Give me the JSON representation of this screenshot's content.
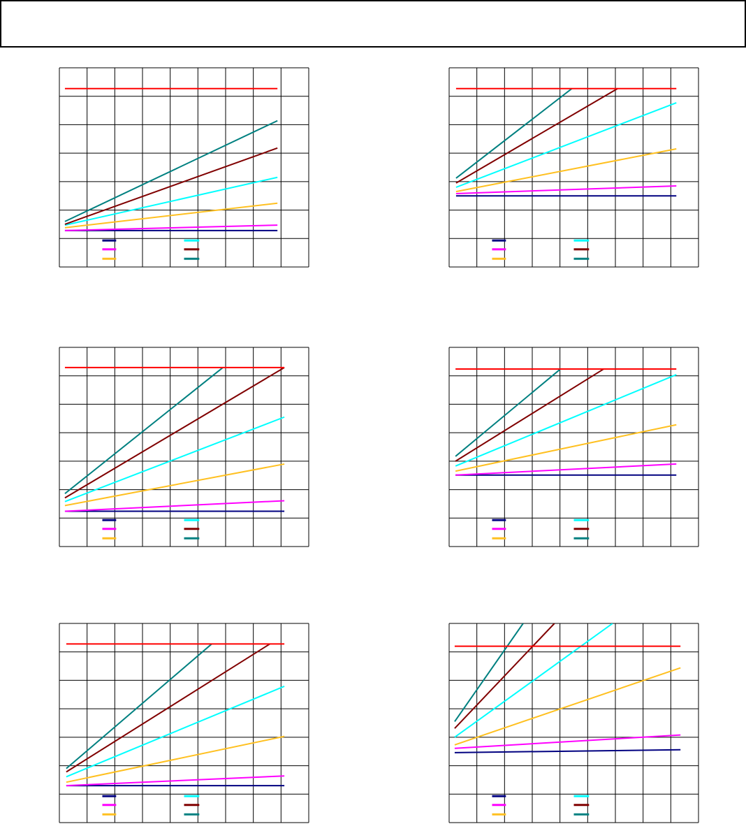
{
  "chart_data": [
    {
      "type": "line",
      "xlim": [
        0,
        9
      ],
      "ylim": [
        0,
        7
      ],
      "xticks": [
        0,
        1,
        2,
        3,
        4,
        5,
        6,
        7,
        8,
        9
      ],
      "yticks": [
        0,
        1,
        2,
        3,
        4,
        5,
        6,
        7
      ],
      "grid": true,
      "series": [
        {
          "color": "#000080",
          "x": [
            0.2,
            7.87
          ],
          "values": [
            1.28,
            1.28
          ]
        },
        {
          "color": "#ff00ff",
          "x": [
            0.2,
            7.87
          ],
          "values": [
            1.28,
            1.47
          ]
        },
        {
          "color": "#ffc020",
          "x": [
            0.2,
            7.87
          ],
          "values": [
            1.38,
            2.24
          ]
        },
        {
          "color": "#00ffff",
          "x": [
            0.2,
            7.87
          ],
          "values": [
            1.47,
            3.15
          ]
        },
        {
          "color": "#800000",
          "x": [
            0.2,
            7.87
          ],
          "values": [
            1.5,
            4.18
          ]
        },
        {
          "color": "#008080",
          "x": [
            0.2,
            7.87
          ],
          "values": [
            1.6,
            5.14
          ]
        },
        {
          "color": "#ff0000",
          "x": [
            0.2,
            7.87
          ],
          "values": [
            6.27,
            6.27
          ],
          "in_legend": false
        }
      ]
    },
    {
      "type": "line",
      "xlim": [
        0,
        9
      ],
      "ylim": [
        0,
        7
      ],
      "xticks": [
        0,
        1,
        2,
        3,
        4,
        5,
        6,
        7,
        8,
        9
      ],
      "yticks": [
        0,
        1,
        2,
        3,
        4,
        5,
        6,
        7
      ],
      "grid": true,
      "series": [
        {
          "color": "#000080",
          "x": [
            0.25,
            8.2
          ],
          "values": [
            2.5,
            2.5
          ]
        },
        {
          "color": "#ff00ff",
          "x": [
            0.25,
            8.2
          ],
          "values": [
            2.58,
            2.85
          ]
        },
        {
          "color": "#ffc020",
          "x": [
            0.25,
            8.2
          ],
          "values": [
            2.65,
            4.15
          ]
        },
        {
          "color": "#00ffff",
          "x": [
            0.25,
            8.2
          ],
          "values": [
            2.8,
            5.77
          ]
        },
        {
          "color": "#800000",
          "x": [
            0.25,
            6.08
          ],
          "values": [
            2.95,
            6.27
          ]
        },
        {
          "color": "#008080",
          "x": [
            0.25,
            4.43
          ],
          "values": [
            3.12,
            6.27
          ]
        },
        {
          "color": "#ff0000",
          "x": [
            0.25,
            8.2
          ],
          "values": [
            6.27,
            6.27
          ],
          "in_legend": false
        }
      ]
    },
    {
      "type": "line",
      "xlim": [
        0,
        9
      ],
      "ylim": [
        0,
        7
      ],
      "xticks": [
        0,
        1,
        2,
        3,
        4,
        5,
        6,
        7,
        8,
        9
      ],
      "yticks": [
        0,
        1,
        2,
        3,
        4,
        5,
        6,
        7
      ],
      "grid": true,
      "series": [
        {
          "color": "#000080",
          "x": [
            0.2,
            8.12
          ],
          "values": [
            1.24,
            1.24
          ]
        },
        {
          "color": "#ff00ff",
          "x": [
            0.2,
            8.12
          ],
          "values": [
            1.24,
            1.61
          ]
        },
        {
          "color": "#ffc020",
          "x": [
            0.2,
            8.12
          ],
          "values": [
            1.44,
            2.9
          ]
        },
        {
          "color": "#00ffff",
          "x": [
            0.2,
            8.12
          ],
          "values": [
            1.58,
            4.55
          ]
        },
        {
          "color": "#800000",
          "x": [
            0.2,
            8.12
          ],
          "values": [
            1.71,
            6.29
          ]
        },
        {
          "color": "#008080",
          "x": [
            0.2,
            5.9
          ],
          "values": [
            1.86,
            6.29
          ]
        },
        {
          "color": "#ff0000",
          "x": [
            0.2,
            8.12
          ],
          "values": [
            6.29,
            6.29
          ],
          "in_legend": false
        }
      ]
    },
    {
      "type": "line",
      "xlim": [
        0,
        9
      ],
      "ylim": [
        0,
        7
      ],
      "xticks": [
        0,
        1,
        2,
        3,
        4,
        5,
        6,
        7,
        8,
        9
      ],
      "yticks": [
        0,
        1,
        2,
        3,
        4,
        5,
        6,
        7
      ],
      "grid": true,
      "series": [
        {
          "color": "#000080",
          "x": [
            0.23,
            8.2
          ],
          "values": [
            2.51,
            2.51
          ]
        },
        {
          "color": "#ff00ff",
          "x": [
            0.23,
            8.2
          ],
          "values": [
            2.51,
            2.9
          ]
        },
        {
          "color": "#ffc020",
          "x": [
            0.23,
            8.2
          ],
          "values": [
            2.65,
            4.28
          ]
        },
        {
          "color": "#00ffff",
          "x": [
            0.23,
            8.2
          ],
          "values": [
            2.83,
            6.04
          ]
        },
        {
          "color": "#800000",
          "x": [
            0.23,
            5.58
          ],
          "values": [
            3.0,
            6.24
          ]
        },
        {
          "color": "#008080",
          "x": [
            0.23,
            4.02
          ],
          "values": [
            3.17,
            6.24
          ]
        },
        {
          "color": "#ff0000",
          "x": [
            0.23,
            8.2
          ],
          "values": [
            6.24,
            6.24
          ],
          "in_legend": false
        }
      ]
    },
    {
      "type": "line",
      "xlim": [
        0,
        9
      ],
      "ylim": [
        0,
        7
      ],
      "xticks": [
        0,
        1,
        2,
        3,
        4,
        5,
        6,
        7,
        8,
        9
      ],
      "yticks": [
        0,
        1,
        2,
        3,
        4,
        5,
        6,
        7
      ],
      "grid": true,
      "series": [
        {
          "color": "#000080",
          "x": [
            0.25,
            8.12
          ],
          "values": [
            1.3,
            1.3
          ]
        },
        {
          "color": "#ff00ff",
          "x": [
            0.25,
            8.12
          ],
          "values": [
            1.3,
            1.64
          ]
        },
        {
          "color": "#ffc020",
          "x": [
            0.25,
            8.12
          ],
          "values": [
            1.42,
            3.03
          ]
        },
        {
          "color": "#00ffff",
          "x": [
            0.25,
            8.12
          ],
          "values": [
            1.61,
            4.79
          ]
        },
        {
          "color": "#800000",
          "x": [
            0.25,
            7.6
          ],
          "values": [
            1.78,
            6.28
          ]
        },
        {
          "color": "#008080",
          "x": [
            0.25,
            5.5
          ],
          "values": [
            1.9,
            6.28
          ]
        },
        {
          "color": "#ff0000",
          "x": [
            0.25,
            8.12
          ],
          "values": [
            6.28,
            6.28
          ],
          "in_legend": false
        }
      ]
    },
    {
      "type": "line",
      "xlim": [
        0,
        9
      ],
      "ylim": [
        0,
        7
      ],
      "xticks": [
        0,
        1,
        2,
        3,
        4,
        5,
        6,
        7,
        8,
        9
      ],
      "yticks": [
        0,
        1,
        2,
        3,
        4,
        5,
        6,
        7
      ],
      "grid": true,
      "series": [
        {
          "color": "#000080",
          "x": [
            0.2,
            8.35
          ],
          "values": [
            2.46,
            2.56
          ]
        },
        {
          "color": "#ff00ff",
          "x": [
            0.2,
            8.35
          ],
          "values": [
            2.61,
            3.08
          ]
        },
        {
          "color": "#ffc020",
          "x": [
            0.2,
            8.35
          ],
          "values": [
            2.73,
            5.44
          ]
        },
        {
          "color": "#00ffff",
          "x": [
            0.2,
            5.9
          ],
          "values": [
            3.0,
            7.0
          ]
        },
        {
          "color": "#800000",
          "x": [
            0.2,
            3.8
          ],
          "values": [
            3.31,
            7.0
          ]
        },
        {
          "color": "#008080",
          "x": [
            0.2,
            2.67
          ],
          "values": [
            3.55,
            7.0
          ]
        },
        {
          "color": "#ff0000",
          "x": [
            0.2,
            8.35
          ],
          "values": [
            6.2,
            6.2
          ],
          "in_legend": false
        }
      ]
    }
  ]
}
